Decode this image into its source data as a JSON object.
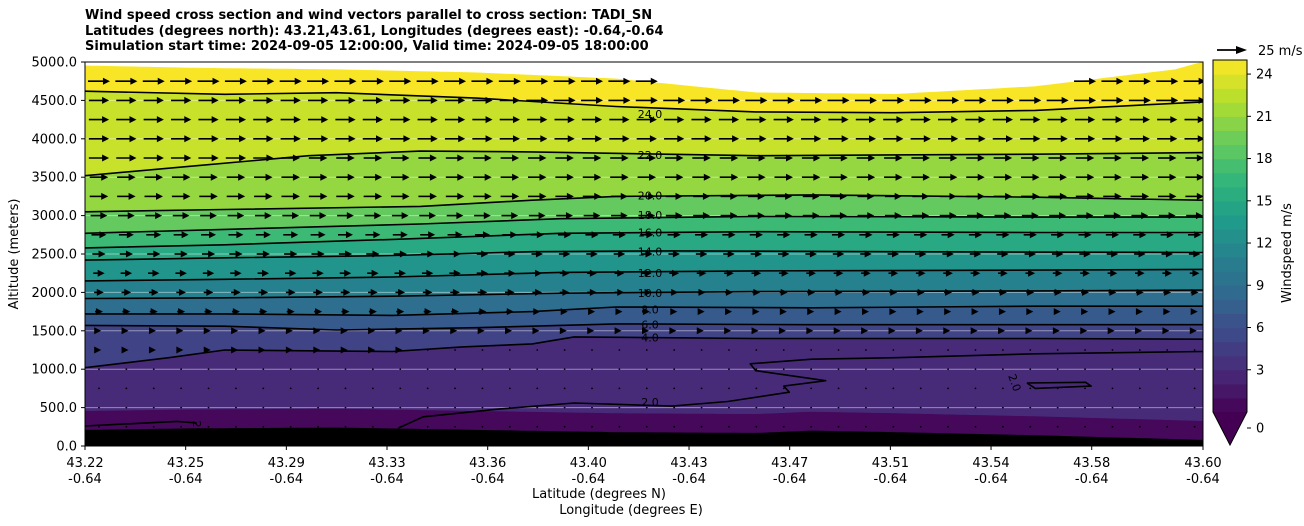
{
  "title_lines": [
    "Wind speed cross section and wind vectors parallel to cross section: TADI_SN",
    "Latitudes (degrees north): 43.21,43.61, Longitudes (degrees east): -0.64,-0.64",
    "Simulation start time: 2024-09-05 12:00:00, Valid time: 2024-09-05 18:00:00"
  ],
  "chart_data": {
    "type": "contour",
    "title": "Wind speed cross section and wind vectors parallel to cross section: TADI_SN",
    "ylabel": "Altitude (meters)",
    "xlabel_lat": "Latitude (degrees N)",
    "xlabel_lon": "Longitude (degrees E)",
    "y_ticks": [
      "0.0",
      "500.0",
      "1000.0",
      "1500.0",
      "2000.0",
      "2500.0",
      "3000.0",
      "3500.0",
      "4000.0",
      "4500.0",
      "5000.0"
    ],
    "ylim": [
      0,
      5000
    ],
    "x_ticks_lat": [
      "43.22",
      "43.25",
      "43.29",
      "43.33",
      "43.36",
      "43.40",
      "43.43",
      "43.47",
      "43.51",
      "43.54",
      "43.58",
      "43.60"
    ],
    "x_ticks_lon": [
      "-0.64",
      "-0.64",
      "-0.64",
      "-0.64",
      "-0.64",
      "-0.64",
      "-0.64",
      "-0.64",
      "-0.64",
      "-0.64",
      "-0.64",
      "-0.64"
    ],
    "xlim": [
      43.21,
      43.61
    ],
    "colorbar": {
      "label": "Windspeed m/s",
      "ticks": [
        "0",
        "3",
        "6",
        "9",
        "12",
        "15",
        "18",
        "21",
        "24"
      ],
      "range": [
        0,
        25
      ],
      "colormap": "viridis",
      "extend": "min"
    },
    "quiver_key": "25 m/s",
    "contour_levels": [
      2,
      4,
      6,
      8,
      10,
      12,
      14,
      16,
      18,
      20,
      22,
      24
    ],
    "contour_labels": [
      "2.0",
      "4.0",
      "6.0",
      "8.0",
      "10.0",
      "12.0",
      "14.0",
      "16.0",
      "18.0",
      "20.0",
      "22.0",
      "24.0"
    ],
    "contour_label_positions": [
      {
        "label": "2.0",
        "x": 43.4,
        "y": 570
      },
      {
        "label": "4.0",
        "x": 43.4,
        "y": 1410
      },
      {
        "label": "6.0",
        "x": 43.4,
        "y": 1580
      },
      {
        "label": "8.0",
        "x": 43.4,
        "y": 1780
      },
      {
        "label": "10.0",
        "x": 43.4,
        "y": 1990
      },
      {
        "label": "12.0",
        "x": 43.4,
        "y": 2250
      },
      {
        "label": "14.0",
        "x": 43.4,
        "y": 2530
      },
      {
        "label": "16.0",
        "x": 43.4,
        "y": 2780
      },
      {
        "label": "18.0",
        "x": 43.4,
        "y": 3010
      },
      {
        "label": "20.0",
        "x": 43.4,
        "y": 3260
      },
      {
        "label": "22.0",
        "x": 43.4,
        "y": 3790
      },
      {
        "label": "24.0",
        "x": 43.4,
        "y": 4320
      }
    ],
    "contour_lines": [
      {
        "level": 2,
        "points": [
          [
            43.21,
            260
          ],
          [
            43.243,
            320
          ],
          [
            43.25,
            300
          ]
        ]
      },
      {
        "level": 2,
        "points": [
          [
            43.322,
            230
          ],
          [
            43.331,
            380
          ],
          [
            43.358,
            480
          ],
          [
            43.385,
            560
          ],
          [
            43.42,
            520
          ],
          [
            43.44,
            580
          ],
          [
            43.462,
            700
          ],
          [
            43.46,
            780
          ],
          [
            43.475,
            850
          ],
          [
            43.45,
            980
          ],
          [
            43.448,
            1070
          ],
          [
            43.47,
            1130
          ],
          [
            43.5,
            1150
          ],
          [
            43.55,
            1200
          ],
          [
            43.61,
            1230
          ]
        ]
      },
      {
        "level": 2,
        "points": [
          [
            43.547,
            820
          ],
          [
            43.568,
            830
          ],
          [
            43.57,
            780
          ],
          [
            43.55,
            750
          ],
          [
            43.547,
            820
          ]
        ]
      },
      {
        "level": 4,
        "points": [
          [
            43.21,
            1020
          ],
          [
            43.24,
            1150
          ],
          [
            43.26,
            1250
          ],
          [
            43.29,
            1240
          ],
          [
            43.32,
            1230
          ],
          [
            43.345,
            1290
          ],
          [
            43.37,
            1330
          ],
          [
            43.385,
            1420
          ],
          [
            43.45,
            1400
          ],
          [
            43.55,
            1400
          ],
          [
            43.61,
            1390
          ]
        ]
      },
      {
        "level": 6,
        "points": [
          [
            43.21,
            1570
          ],
          [
            43.26,
            1560
          ],
          [
            43.3,
            1510
          ],
          [
            43.35,
            1540
          ],
          [
            43.4,
            1590
          ],
          [
            43.47,
            1580
          ],
          [
            43.55,
            1580
          ],
          [
            43.61,
            1580
          ]
        ]
      },
      {
        "level": 8,
        "points": [
          [
            43.21,
            1720
          ],
          [
            43.26,
            1720
          ],
          [
            43.32,
            1700
          ],
          [
            43.37,
            1750
          ],
          [
            43.4,
            1810
          ],
          [
            43.47,
            1800
          ],
          [
            43.55,
            1820
          ],
          [
            43.61,
            1820
          ]
        ]
      },
      {
        "level": 10,
        "points": [
          [
            43.21,
            1920
          ],
          [
            43.26,
            1930
          ],
          [
            43.32,
            1950
          ],
          [
            43.38,
            1990
          ],
          [
            43.45,
            2010
          ],
          [
            43.55,
            2020
          ],
          [
            43.61,
            2030
          ]
        ]
      },
      {
        "level": 12,
        "points": [
          [
            43.21,
            2150
          ],
          [
            43.26,
            2170
          ],
          [
            43.32,
            2200
          ],
          [
            43.38,
            2260
          ],
          [
            43.45,
            2280
          ],
          [
            43.55,
            2290
          ],
          [
            43.61,
            2300
          ]
        ]
      },
      {
        "level": 14,
        "points": [
          [
            43.21,
            2420
          ],
          [
            43.26,
            2450
          ],
          [
            43.32,
            2480
          ],
          [
            43.37,
            2530
          ],
          [
            43.42,
            2540
          ],
          [
            43.5,
            2530
          ],
          [
            43.61,
            2520
          ]
        ]
      },
      {
        "level": 16,
        "points": [
          [
            43.21,
            2580
          ],
          [
            43.26,
            2620
          ],
          [
            43.32,
            2690
          ],
          [
            43.38,
            2770
          ],
          [
            43.45,
            2790
          ],
          [
            43.55,
            2780
          ],
          [
            43.61,
            2780
          ]
        ]
      },
      {
        "level": 18,
        "points": [
          [
            43.21,
            2770
          ],
          [
            43.26,
            2820
          ],
          [
            43.33,
            2890
          ],
          [
            43.38,
            2960
          ],
          [
            43.45,
            2990
          ],
          [
            43.55,
            2980
          ],
          [
            43.61,
            2980
          ]
        ]
      },
      {
        "level": 20,
        "points": [
          [
            43.21,
            3050
          ],
          [
            43.26,
            3080
          ],
          [
            43.33,
            3120
          ],
          [
            43.37,
            3200
          ],
          [
            43.4,
            3250
          ],
          [
            43.47,
            3270
          ],
          [
            43.55,
            3240
          ],
          [
            43.61,
            3200
          ]
        ]
      },
      {
        "level": 22,
        "points": [
          [
            43.21,
            3520
          ],
          [
            43.25,
            3650
          ],
          [
            43.29,
            3780
          ],
          [
            43.33,
            3840
          ],
          [
            43.37,
            3830
          ],
          [
            43.45,
            3780
          ],
          [
            43.55,
            3800
          ],
          [
            43.61,
            3820
          ]
        ]
      },
      {
        "level": 24,
        "points": [
          [
            43.21,
            4620
          ],
          [
            43.26,
            4580
          ],
          [
            43.3,
            4600
          ],
          [
            43.35,
            4530
          ],
          [
            43.4,
            4420
          ],
          [
            43.45,
            4350
          ],
          [
            43.5,
            4340
          ],
          [
            43.55,
            4370
          ],
          [
            43.61,
            4480
          ]
        ]
      }
    ],
    "terrain_height": [
      [
        43.21,
        210
      ],
      [
        43.25,
        230
      ],
      [
        43.3,
        240
      ],
      [
        43.35,
        210
      ],
      [
        43.4,
        180
      ],
      [
        43.45,
        170
      ],
      [
        43.47,
        200
      ],
      [
        43.5,
        180
      ],
      [
        43.55,
        140
      ],
      [
        43.61,
        80
      ]
    ],
    "upper_boundary": [
      [
        43.21,
        4950
      ],
      [
        43.25,
        4920
      ],
      [
        43.3,
        4900
      ],
      [
        43.35,
        4860
      ],
      [
        43.4,
        4780
      ],
      [
        43.45,
        4600
      ],
      [
        43.5,
        4580
      ],
      [
        43.55,
        4680
      ],
      [
        43.6,
        4900
      ],
      [
        43.61,
        5000
      ]
    ]
  }
}
